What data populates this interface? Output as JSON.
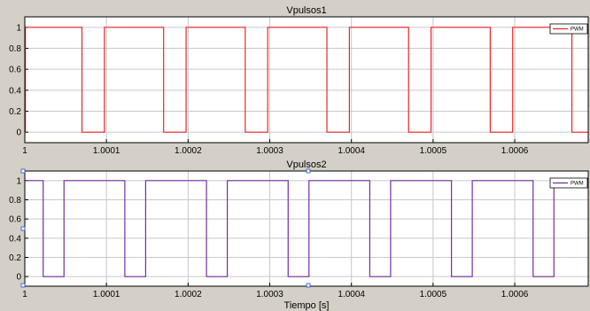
{
  "chart_data": [
    {
      "type": "line",
      "title": "Vpulsos1",
      "xlabel": "",
      "ylabel": "",
      "xlim": [
        1,
        1.00069
      ],
      "ylim": [
        -0.1,
        1.1
      ],
      "x_ticks": [
        1,
        1.0001,
        1.0002,
        1.0003,
        1.0004,
        1.0005,
        1.0006
      ],
      "x_tick_labels": [
        "1",
        "1.0001",
        "1.0002",
        "1.0003",
        "1.0004",
        "1.0005",
        "1.0006"
      ],
      "y_ticks": [
        0,
        0.2,
        0.4,
        0.6,
        0.8,
        1
      ],
      "y_tick_labels": [
        "0",
        "0.2",
        "0.4",
        "0.6",
        "0.8",
        "1"
      ],
      "grid": true,
      "legend": {
        "placement": "top-right",
        "entries": [
          "PWM"
        ]
      },
      "series": [
        {
          "name": "PWM",
          "color": "#e8262b",
          "x": [
            1,
            1.0000007,
            1.0000007,
            1.00007,
            1.00007,
            1.0000975,
            1.0000975,
            1.00017,
            1.00017,
            1.0001975,
            1.0001975,
            1.00027,
            1.00027,
            1.0002975,
            1.0002975,
            1.00037,
            1.00037,
            1.0003975,
            1.0003975,
            1.00047,
            1.00047,
            1.0004975,
            1.0004975,
            1.00057,
            1.00057,
            1.0005975,
            1.0005975,
            1.00067,
            1.00067,
            1.00069
          ],
          "y": [
            0,
            0,
            1,
            1,
            0,
            0,
            1,
            1,
            0,
            0,
            1,
            1,
            0,
            0,
            1,
            1,
            0,
            0,
            1,
            1,
            0,
            0,
            1,
            1,
            0,
            0,
            1,
            1,
            0,
            0
          ]
        }
      ]
    },
    {
      "type": "line",
      "title": "Vpulsos2",
      "xlabel": "Tiempo [s]",
      "ylabel": "",
      "xlim": [
        1,
        1.00069
      ],
      "ylim": [
        -0.1,
        1.1
      ],
      "x_ticks": [
        1,
        1.0001,
        1.0002,
        1.0003,
        1.0004,
        1.0005,
        1.0006
      ],
      "x_tick_labels": [
        "1",
        "1.0001",
        "1.0002",
        "1.0003",
        "1.0004",
        "1.0005",
        "1.0006"
      ],
      "y_ticks": [
        0,
        0.2,
        0.4,
        0.6,
        0.8,
        1
      ],
      "y_tick_labels": [
        "0",
        "0.2",
        "0.4",
        "0.6",
        "0.8",
        "1"
      ],
      "grid": true,
      "legend": {
        "placement": "top-right",
        "entries": [
          "PWM"
        ]
      },
      "series": [
        {
          "name": "PWM",
          "color": "#7030a0",
          "x": [
            1,
            1.0000225,
            1.0000225,
            1.000048,
            1.000048,
            1.0001225,
            1.0001225,
            1.000148,
            1.000148,
            1.0002225,
            1.0002225,
            1.000248,
            1.000248,
            1.0003225,
            1.0003225,
            1.000348,
            1.000348,
            1.0004225,
            1.0004225,
            1.000448,
            1.000448,
            1.0005225,
            1.0005225,
            1.000548,
            1.000548,
            1.0006225,
            1.0006225,
            1.000648,
            1.000648,
            1.00069
          ],
          "y": [
            1,
            1,
            0,
            0,
            1,
            1,
            0,
            0,
            1,
            1,
            0,
            0,
            1,
            1,
            0,
            0,
            1,
            1,
            0,
            0,
            1,
            1,
            0,
            0,
            1,
            1,
            0,
            0,
            1,
            1
          ]
        }
      ]
    }
  ]
}
